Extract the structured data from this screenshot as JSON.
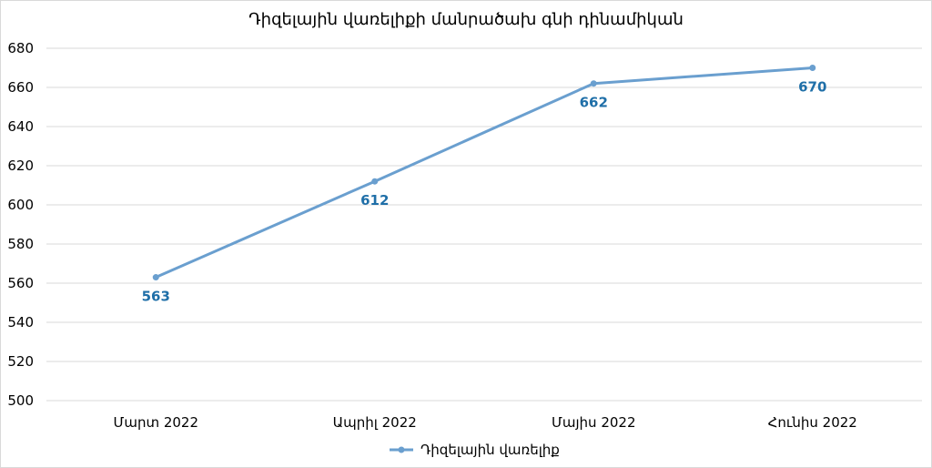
{
  "chart_data": {
    "type": "line",
    "title": "Դիզելային վառելիքի մանրածախ գնի դինամիկան",
    "categories": [
      "Մարտ 2022",
      "Ապրիլ 2022",
      "Մայիս 2022",
      "Հունիս 2022"
    ],
    "series": [
      {
        "name": "Դիզելային վառելիք",
        "values": [
          563,
          612,
          662,
          670
        ],
        "color": "#6a9fcf",
        "label_color": "#1f6fa8"
      }
    ],
    "ylim": [
      500,
      680
    ],
    "ystep": 20,
    "y_ticks": [
      "500",
      "520",
      "540",
      "560",
      "580",
      "600",
      "620",
      "640",
      "660",
      "680"
    ],
    "grid": true,
    "legend_position": "bottom",
    "gridline_color": "#d9d9d9"
  }
}
